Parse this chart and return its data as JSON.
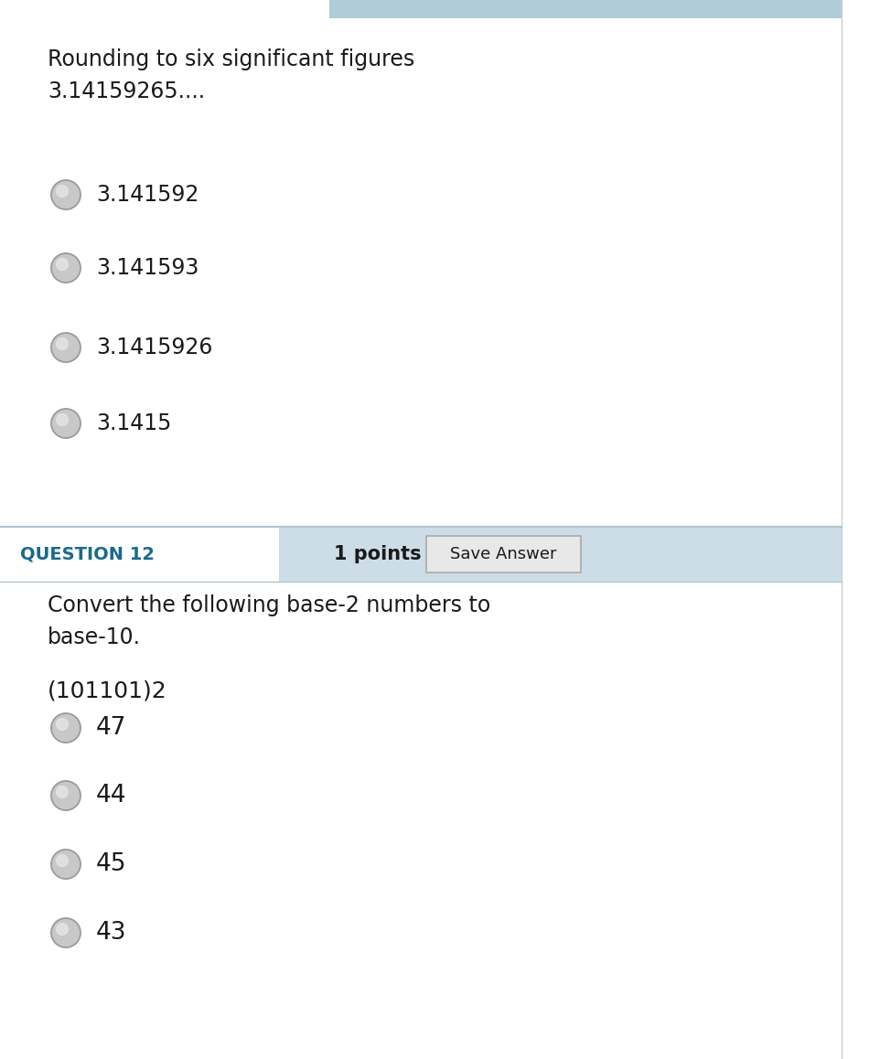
{
  "bg_color": "#ffffff",
  "header_bar_color": "#ccdde8",
  "top_bar_color": "#b0ccd9",
  "save_btn_bg": "#e8e8e8",
  "save_btn_border": "#aaaaaa",
  "radio_fill": "#c8c8c8",
  "radio_stroke": "#999999",
  "radio_highlight": "#e8e8e8",
  "text_color": "#1a1a1a",
  "q_label_color": "#1a6a8a",
  "border_color": "#cccccc",
  "section1_question_line1": "Rounding to six significant figures",
  "section1_question_line2": "3.14159265....",
  "section1_options": [
    "3.141592",
    "3.141593",
    "3.1415926",
    "3.1415"
  ],
  "section2_header": "QUESTION 12",
  "section2_points": "1 points",
  "section2_save": "Save Answer",
  "section2_question_line1": "Convert the following base-2 numbers to",
  "section2_question_line2": "base-10.",
  "section2_sub": "(101101)2",
  "section2_options": [
    "47",
    "44",
    "45",
    "43"
  ],
  "font_size_question": 17,
  "font_size_options": 17,
  "font_size_header": 14,
  "font_size_save": 13,
  "font_size_sub": 18
}
